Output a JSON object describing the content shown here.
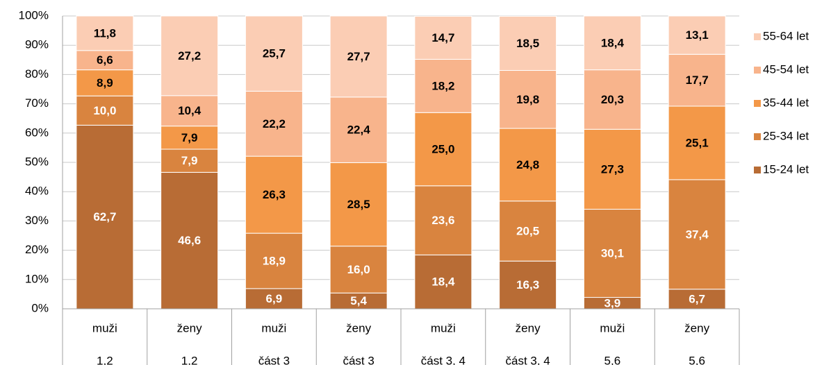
{
  "chart_data": {
    "type": "stacked_bar_100",
    "categories": [
      [
        "muži",
        "1,2"
      ],
      [
        "ženy",
        "1,2"
      ],
      [
        "muži",
        "část 3"
      ],
      [
        "ženy",
        "část 3"
      ],
      [
        "muži",
        "část 3, 4"
      ],
      [
        "ženy",
        "část 3, 4"
      ],
      [
        "muži",
        "5,6"
      ],
      [
        "ženy",
        "5,6"
      ]
    ],
    "series": [
      {
        "name": "15-24 let",
        "color": "#b86c35",
        "values": [
          62.7,
          46.6,
          6.9,
          5.4,
          18.4,
          16.3,
          3.9,
          6.7
        ],
        "value_labels": [
          "62,7",
          "46,6",
          "6,9",
          "5,4",
          "18,4",
          "16,3",
          "3,9",
          "6,7"
        ]
      },
      {
        "name": "25-34 let",
        "color": "#d9843f",
        "values": [
          10.0,
          7.9,
          18.9,
          16.0,
          23.6,
          20.5,
          30.1,
          37.4
        ],
        "value_labels": [
          "10,0",
          "7,9",
          "18,9",
          "16,0",
          "23,6",
          "20,5",
          "30,1",
          "37,4"
        ]
      },
      {
        "name": "35-44 let",
        "color": "#f39848",
        "values": [
          8.9,
          7.9,
          26.3,
          28.5,
          25.0,
          24.8,
          27.3,
          25.1
        ],
        "value_labels": [
          "8,9",
          "7,9",
          "26,3",
          "28,5",
          "25,0",
          "24,8",
          "27,3",
          "25,1"
        ]
      },
      {
        "name": "45-54 let",
        "color": "#f8b48c",
        "values": [
          6.6,
          10.4,
          22.2,
          22.4,
          18.2,
          19.8,
          20.3,
          17.7
        ],
        "value_labels": [
          "6,6",
          "10,4",
          "22,2",
          "22,4",
          "18,2",
          "19,8",
          "20,3",
          "17,7"
        ]
      },
      {
        "name": "55-64 let",
        "color": "#fbcdb4",
        "values": [
          11.8,
          27.2,
          25.7,
          27.7,
          14.7,
          18.5,
          18.4,
          13.1
        ],
        "value_labels": [
          "11,8",
          "27,2",
          "25,7",
          "27,7",
          "14,7",
          "18,5",
          "18,4",
          "13,1"
        ]
      }
    ],
    "ylim": [
      0,
      100
    ],
    "yticks": [
      {
        "value": 0,
        "label": "0%"
      },
      {
        "value": 10,
        "label": "10%"
      },
      {
        "value": 20,
        "label": "20%"
      },
      {
        "value": 30,
        "label": "30%"
      },
      {
        "value": 40,
        "label": "40%"
      },
      {
        "value": 50,
        "label": "50%"
      },
      {
        "value": 60,
        "label": "60%"
      },
      {
        "value": 70,
        "label": "70%"
      },
      {
        "value": 80,
        "label": "80%"
      },
      {
        "value": 90,
        "label": "90%"
      },
      {
        "value": 100,
        "label": "100%"
      }
    ],
    "grid": true,
    "legend": "right"
  }
}
